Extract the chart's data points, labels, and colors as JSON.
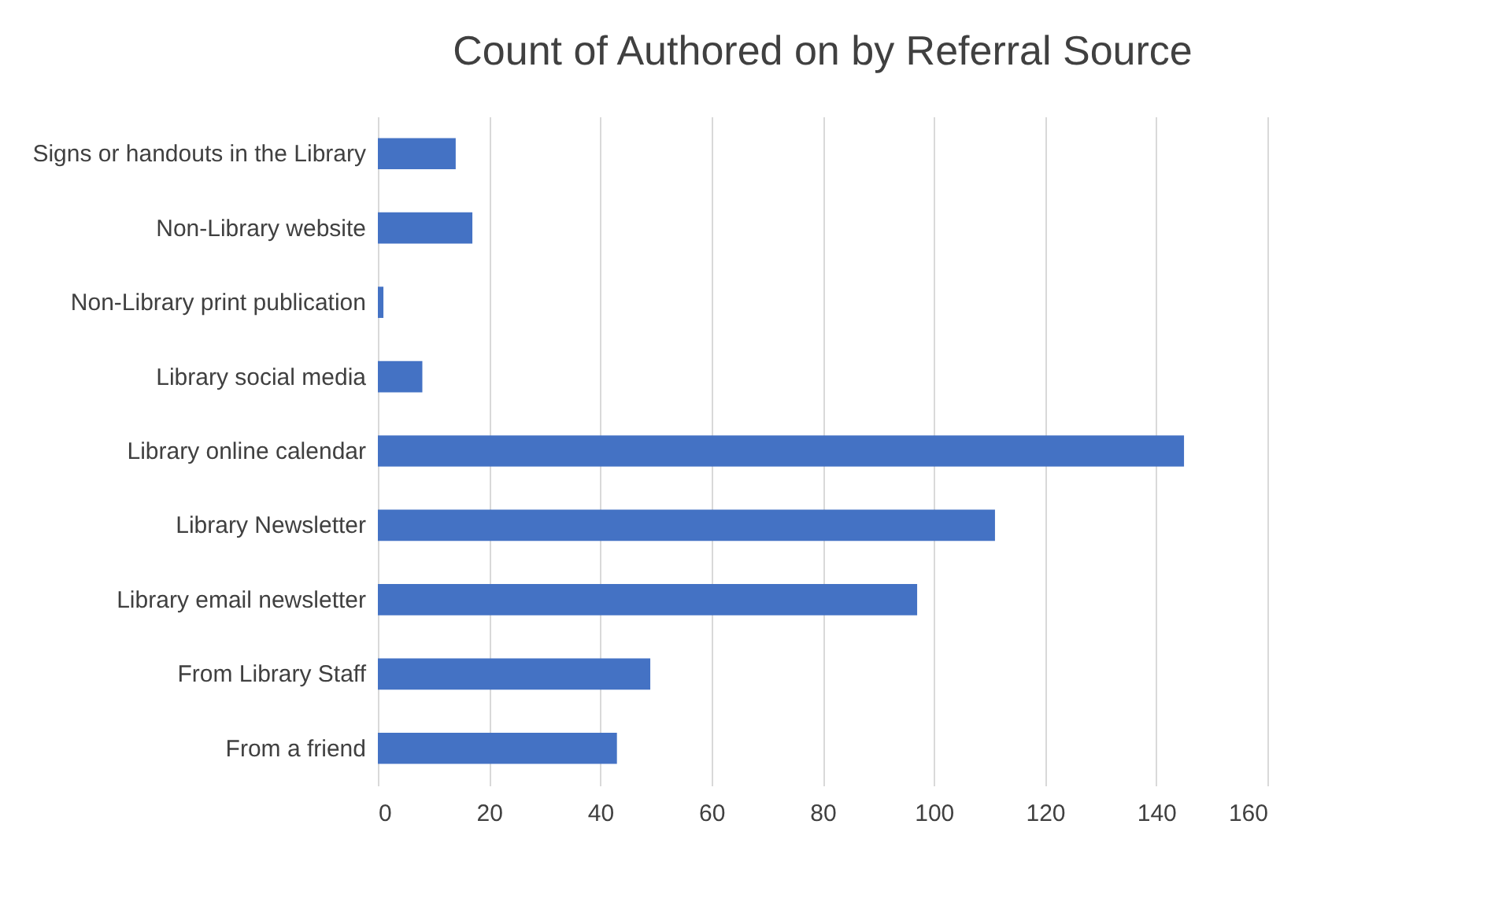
{
  "chart_data": {
    "type": "bar",
    "orientation": "horizontal",
    "title": "Count of Authored on by Referral Source",
    "categories": [
      "Signs or handouts in the Library",
      "Non-Library website",
      "Non-Library print publication",
      "Library social media",
      "Library online calendar",
      "Library Newsletter",
      "Library email newsletter",
      "From Library Staff",
      "From a friend"
    ],
    "values": [
      14,
      17,
      1,
      8,
      145,
      111,
      97,
      49,
      43
    ],
    "color": "#4472c4",
    "xlim": [
      0,
      160
    ],
    "xticks": [
      0,
      20,
      40,
      60,
      80,
      100,
      120,
      140,
      160
    ],
    "grid": "x"
  }
}
